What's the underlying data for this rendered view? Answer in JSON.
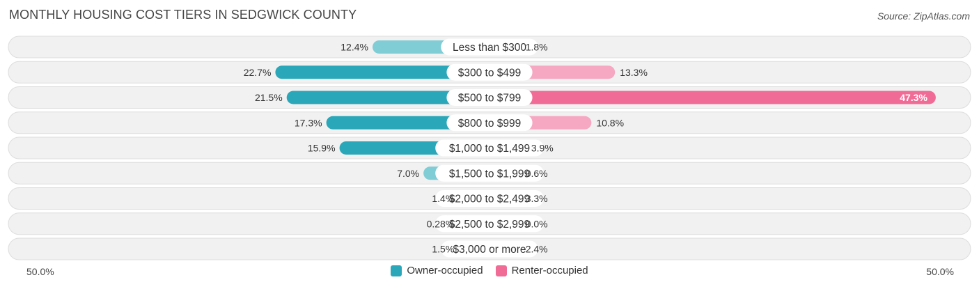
{
  "title": "MONTHLY HOUSING COST TIERS IN SEDGWICK COUNTY",
  "source": "Source: ZipAtlas.com",
  "colors": {
    "owner_strong": "#2aa7b8",
    "owner_light": "#80cdd6",
    "renter_strong": "#f06b96",
    "renter_light": "#f6a7c1",
    "row_bg": "#f1f1f1",
    "row_border": "#dddddd"
  },
  "chart_data": {
    "type": "bar",
    "orientation": "horizontal-diverging",
    "title": "MONTHLY HOUSING COST TIERS IN SEDGWICK COUNTY",
    "categories": [
      "Less than $300",
      "$300 to $499",
      "$500 to $799",
      "$800 to $999",
      "$1,000 to $1,499",
      "$1,500 to $1,999",
      "$2,000 to $2,499",
      "$2,500 to $2,999",
      "$3,000 or more"
    ],
    "series": [
      {
        "name": "Owner-occupied",
        "values": [
          12.4,
          22.7,
          21.5,
          17.3,
          15.9,
          7.0,
          1.4,
          0.28,
          1.5
        ],
        "labels": [
          "12.4%",
          "22.7%",
          "21.5%",
          "17.3%",
          "15.9%",
          "7.0%",
          "1.4%",
          "0.28%",
          "1.5%"
        ]
      },
      {
        "name": "Renter-occupied",
        "values": [
          1.8,
          13.3,
          47.3,
          10.8,
          3.9,
          0.6,
          3.3,
          0.0,
          2.4
        ],
        "labels": [
          "1.8%",
          "13.3%",
          "47.3%",
          "10.8%",
          "3.9%",
          "0.6%",
          "3.3%",
          "0.0%",
          "2.4%"
        ]
      }
    ],
    "xlim": [
      -50,
      50
    ],
    "axis_min_label": "50.0%",
    "axis_max_label": "50.0%",
    "legend": [
      "Owner-occupied",
      "Renter-occupied"
    ],
    "legend_position": "bottom-center"
  }
}
